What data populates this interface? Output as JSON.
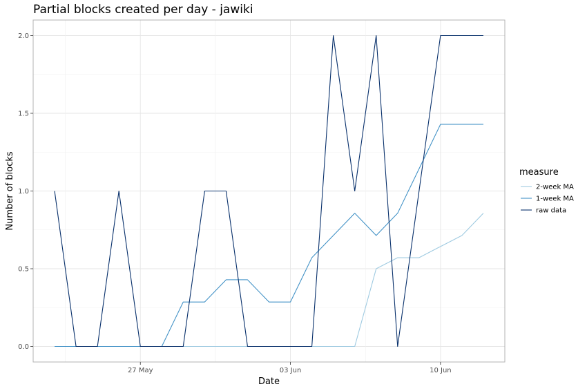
{
  "chart_data": {
    "type": "line",
    "title": "Partial blocks created per day - jawiki",
    "xlabel": "Date",
    "ylabel": "Number of blocks",
    "x_ticks": [
      "27 May",
      "03 Jun",
      "10 Jun"
    ],
    "y_ticks": [
      "0.0",
      "0.5",
      "1.0",
      "1.5",
      "2.0"
    ],
    "ylim": [
      -0.1,
      2.1
    ],
    "grid": true,
    "legend": {
      "title": "measure",
      "placement": "right"
    },
    "x": [
      "2019-05-23",
      "2019-05-24",
      "2019-05-25",
      "2019-05-26",
      "2019-05-27",
      "2019-05-28",
      "2019-05-29",
      "2019-05-30",
      "2019-05-31",
      "2019-06-01",
      "2019-06-02",
      "2019-06-03",
      "2019-06-04",
      "2019-06-05",
      "2019-06-06",
      "2019-06-07",
      "2019-06-08",
      "2019-06-09",
      "2019-06-10",
      "2019-06-11",
      "2019-06-12"
    ],
    "series": [
      {
        "name": "2-week MA",
        "color": "#9ecae1",
        "values": [
          0,
          0,
          0,
          0,
          0,
          0,
          0,
          0,
          0,
          0,
          0,
          0,
          0,
          0,
          0,
          0.5,
          0.571,
          0.571,
          0.643,
          0.714,
          0.857
        ]
      },
      {
        "name": "1-week MA",
        "color": "#4292c6",
        "values": [
          0,
          0,
          0,
          0,
          0,
          0,
          0.286,
          0.286,
          0.429,
          0.429,
          0.286,
          0.286,
          0.571,
          0.714,
          0.857,
          0.714,
          0.857,
          1.143,
          1.429,
          1.429,
          1.429
        ]
      },
      {
        "name": "raw data",
        "color": "#08306b",
        "values": [
          1,
          0,
          0,
          1,
          0,
          0,
          0,
          1,
          1,
          0,
          0,
          0,
          0,
          2,
          1,
          2,
          0,
          1,
          2,
          2,
          2
        ]
      }
    ]
  }
}
